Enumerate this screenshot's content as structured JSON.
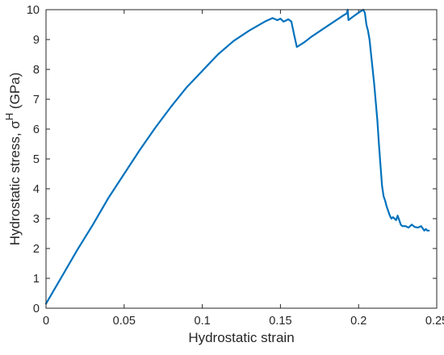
{
  "chart_data": {
    "type": "line",
    "xlabel": "Hydrostatic strain",
    "ylabel": "Hydrostatic stress, σ",
    "ylabel_sup": "H",
    "ylabel_unit": " (GPa)",
    "xlim": [
      0,
      0.25
    ],
    "ylim": [
      0,
      10
    ],
    "grid": false,
    "x_ticks": [
      "0",
      "0.05",
      "0.1",
      "0.15",
      "0.2",
      "0.25"
    ],
    "y_ticks": [
      "0",
      "1",
      "2",
      "3",
      "4",
      "5",
      "6",
      "7",
      "8",
      "9",
      "10"
    ],
    "line_color": "#0072BD",
    "series": [
      {
        "x": [
          0.0,
          0.005,
          0.01,
          0.02,
          0.03,
          0.04,
          0.05,
          0.06,
          0.07,
          0.08,
          0.09,
          0.1,
          0.11,
          0.12,
          0.13,
          0.14,
          0.145,
          0.148,
          0.15,
          0.152,
          0.154,
          0.155,
          0.157,
          0.159,
          0.1605,
          0.165,
          0.17,
          0.18,
          0.19,
          0.1925,
          0.193,
          0.1935,
          0.196,
          0.2,
          0.203,
          0.204,
          0.205,
          0.206,
          0.207,
          0.208,
          0.21,
          0.212,
          0.213,
          0.214,
          0.215,
          0.216,
          0.217,
          0.218,
          0.219,
          0.22,
          0.221,
          0.222,
          0.224,
          0.225,
          0.226,
          0.227,
          0.228,
          0.23,
          0.232,
          0.234,
          0.236,
          0.238,
          0.24,
          0.242,
          0.243,
          0.244,
          0.245
        ],
        "y": [
          0.15,
          0.6,
          1.05,
          1.95,
          2.8,
          3.7,
          4.5,
          5.3,
          6.05,
          6.75,
          7.4,
          7.95,
          8.5,
          8.95,
          9.3,
          9.6,
          9.72,
          9.65,
          9.7,
          9.6,
          9.65,
          9.68,
          9.6,
          9.1,
          8.75,
          8.9,
          9.1,
          9.45,
          9.8,
          9.88,
          10.0,
          9.65,
          9.75,
          9.9,
          10.0,
          9.9,
          9.5,
          9.3,
          9.0,
          8.5,
          7.5,
          6.3,
          5.5,
          4.8,
          4.1,
          3.75,
          3.6,
          3.4,
          3.25,
          3.1,
          3.0,
          3.05,
          2.95,
          3.1,
          2.95,
          2.8,
          2.75,
          2.75,
          2.7,
          2.8,
          2.72,
          2.7,
          2.75,
          2.6,
          2.65,
          2.6,
          2.6
        ]
      }
    ]
  }
}
